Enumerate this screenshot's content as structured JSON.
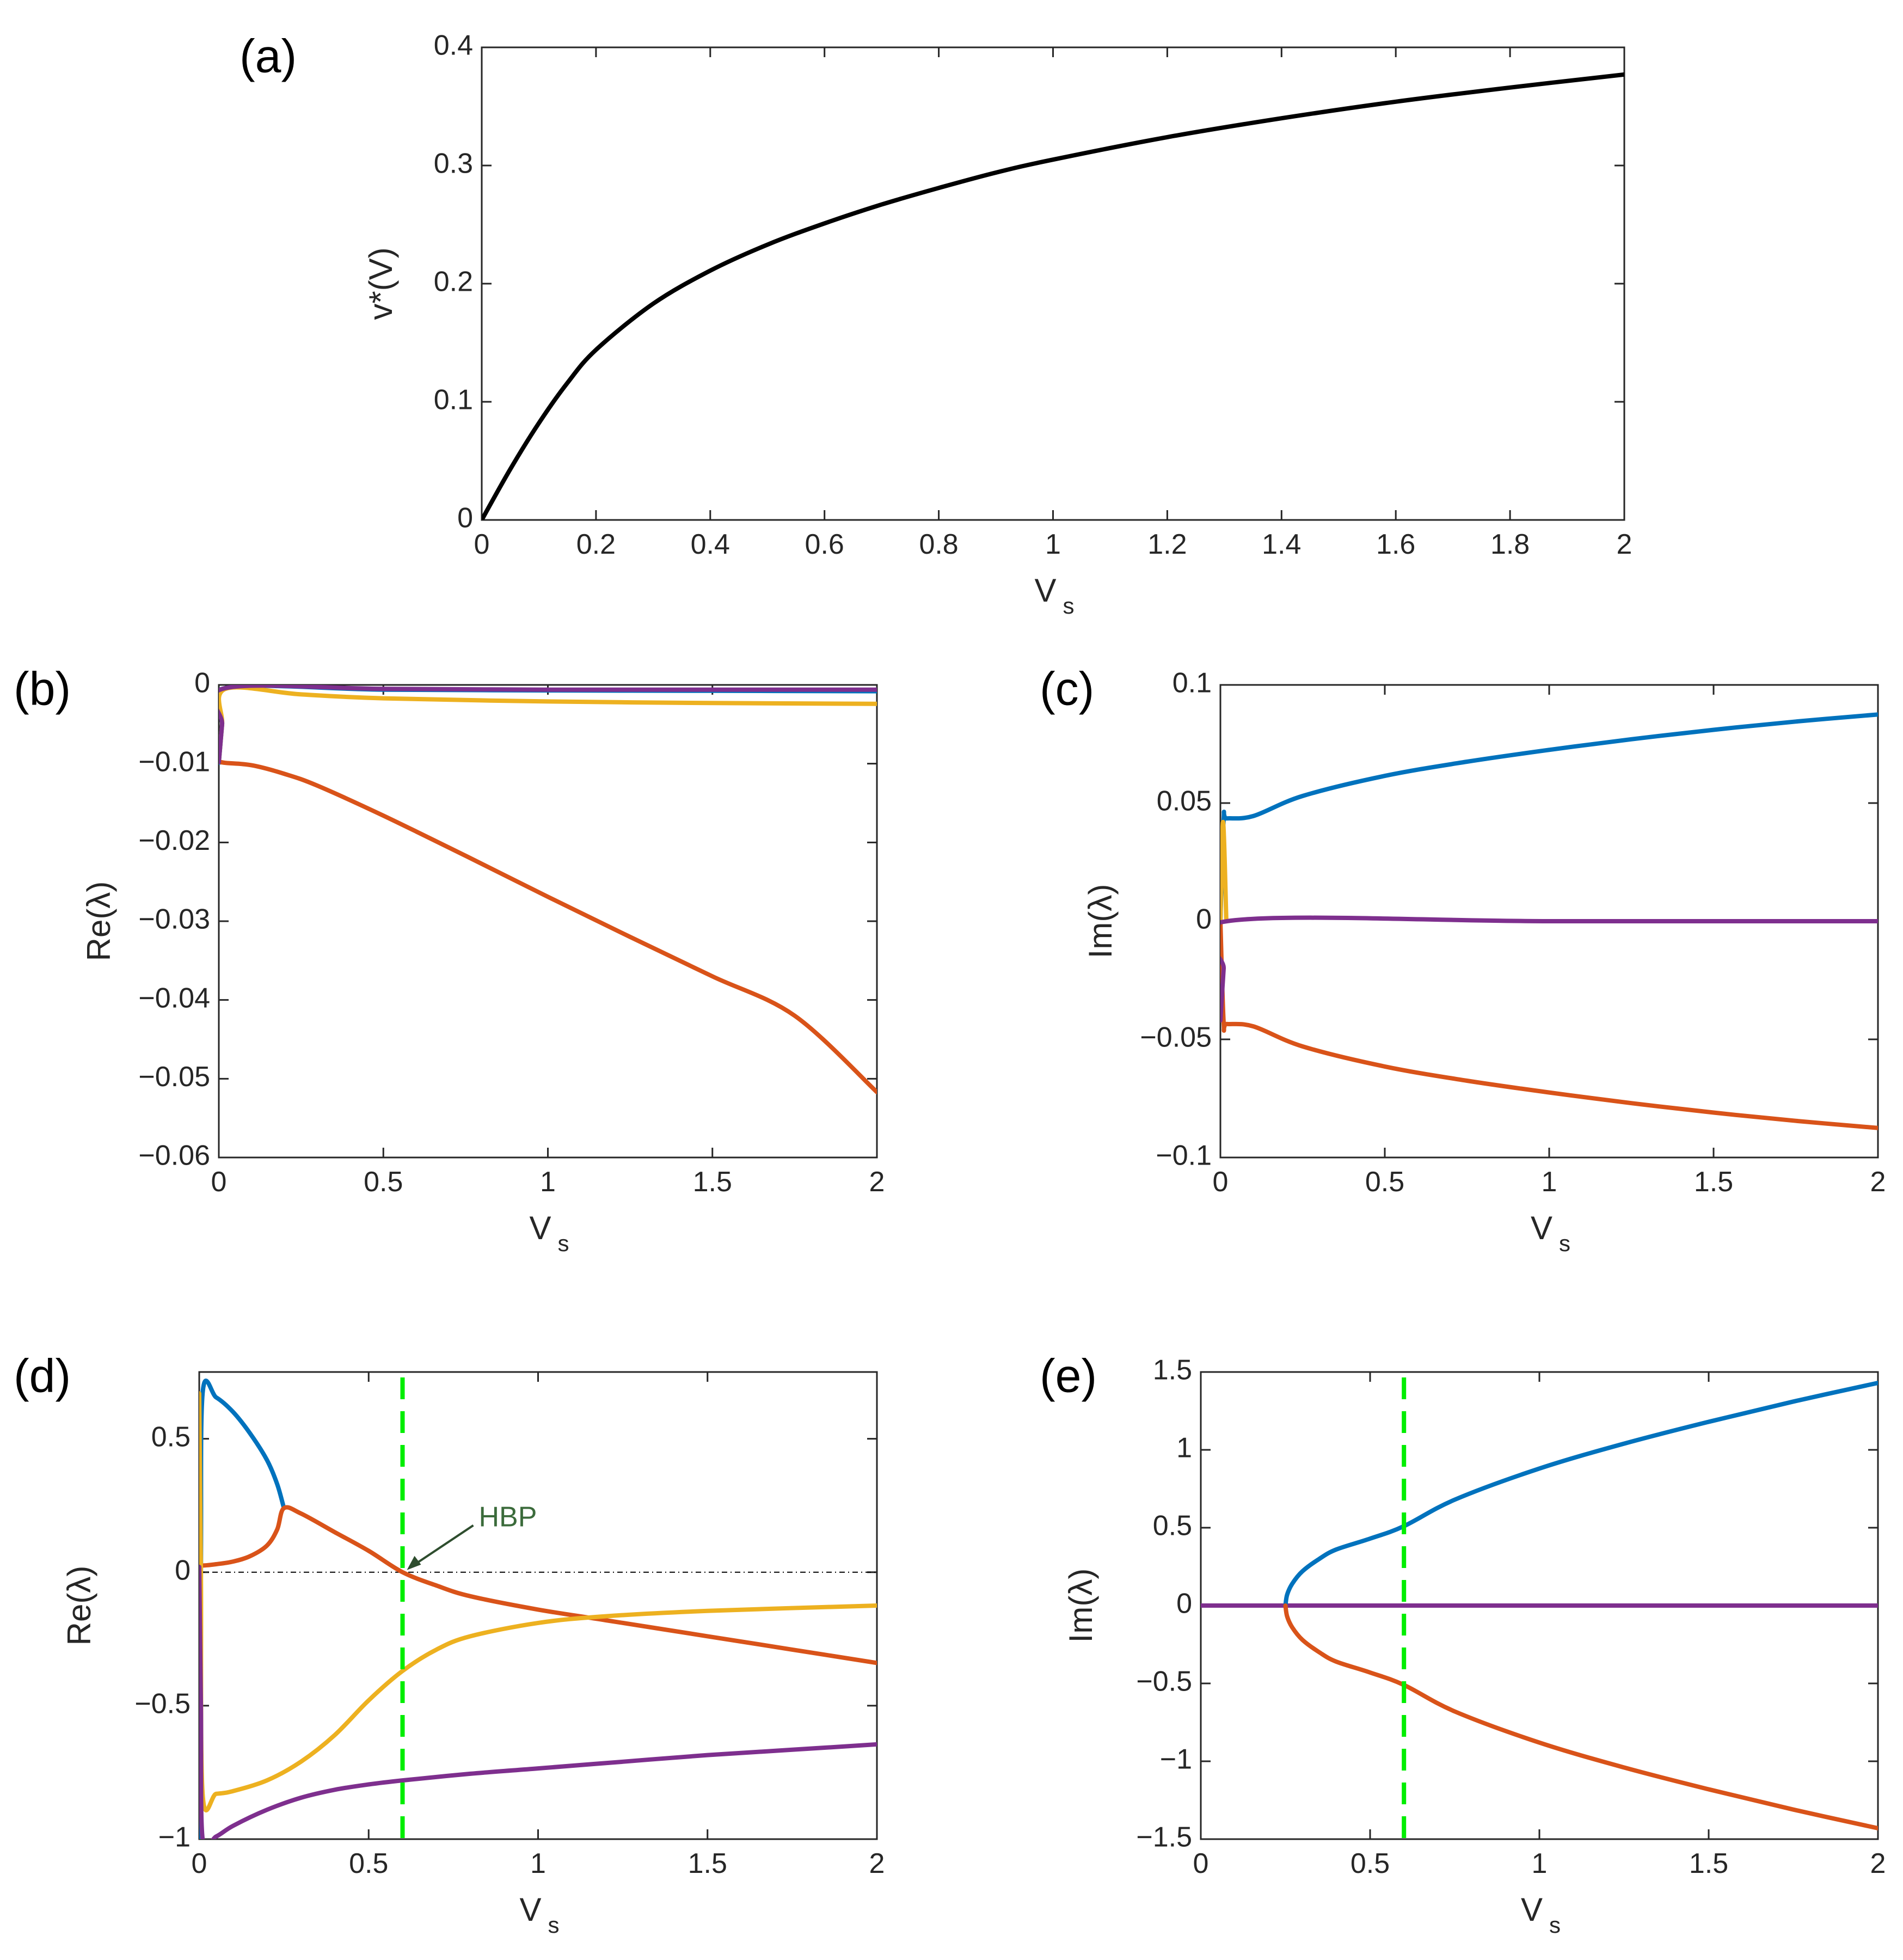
{
  "chart_data": [
    {
      "id": "a",
      "panel_label": "(a)",
      "type": "line",
      "xlabel": "V",
      "xlabel_sub": "s",
      "ylabel": "v*(V)",
      "xlim": [
        0,
        2
      ],
      "ylim": [
        0,
        0.4
      ],
      "xticks": [
        0,
        0.2,
        0.4,
        0.6,
        0.8,
        1,
        1.2,
        1.4,
        1.6,
        1.8,
        2
      ],
      "xtick_labels": [
        "0",
        "0.2",
        "0.4",
        "0.6",
        "0.8",
        "1",
        "1.2",
        "1.4",
        "1.6",
        "1.8",
        "2"
      ],
      "yticks": [
        0,
        0.1,
        0.2,
        0.3,
        0.4
      ],
      "ytick_labels": [
        "0",
        "0.1",
        "0.2",
        "0.3",
        "0.4"
      ],
      "series": [
        {
          "name": "v*",
          "color": "#000000",
          "x": [
            0,
            0.05,
            0.1,
            0.15,
            0.2,
            0.3,
            0.4,
            0.5,
            0.6,
            0.7,
            0.8,
            0.9,
            1.0,
            1.2,
            1.4,
            1.6,
            1.8,
            2.0
          ],
          "y": [
            0,
            0.043,
            0.082,
            0.116,
            0.144,
            0.183,
            0.211,
            0.233,
            0.251,
            0.267,
            0.281,
            0.294,
            0.305,
            0.324,
            0.34,
            0.354,
            0.366,
            0.377
          ]
        }
      ]
    },
    {
      "id": "b",
      "panel_label": "(b)",
      "type": "line",
      "xlabel": "V",
      "xlabel_sub": "s",
      "ylabel": "Re(λ)",
      "xlim": [
        0,
        2
      ],
      "ylim": [
        -0.06,
        0
      ],
      "xticks": [
        0,
        0.5,
        1,
        1.5,
        2
      ],
      "xtick_labels": [
        "0",
        "0.5",
        "1",
        "1.5",
        "2"
      ],
      "yticks": [
        0,
        -0.01,
        -0.02,
        -0.03,
        -0.04,
        -0.05,
        -0.06
      ],
      "ytick_labels": [
        "0",
        "−0.01",
        "−0.02",
        "−0.03",
        "−0.04",
        "−0.05",
        "−0.06"
      ],
      "series": [
        {
          "name": "blue",
          "color": "#0072BD",
          "x": [
            0,
            0.01,
            0.02,
            0.5,
            1,
            1.5,
            2
          ],
          "y": [
            -0.0099,
            -0.005,
            -0.0004,
            -0.0006,
            -0.0007,
            -0.00075,
            -0.0008
          ]
        },
        {
          "name": "orange",
          "color": "#D95319",
          "x": [
            0,
            0.02,
            0.1,
            0.2,
            0.3,
            0.5,
            0.75,
            1,
            1.25,
            1.5,
            1.75,
            2
          ],
          "y": [
            -0.0097,
            -0.0099,
            -0.0102,
            -0.0113,
            -0.0128,
            -0.0166,
            -0.0217,
            -0.0269,
            -0.032,
            -0.037,
            -0.042,
            -0.0517
          ]
        },
        {
          "name": "yellow",
          "color": "#EDB120",
          "x": [
            0,
            0.01,
            0.02,
            0.25,
            0.5,
            1,
            1.5,
            2
          ],
          "y": [
            -0.0098,
            -0.005,
            -0.0005,
            -0.0012,
            -0.0017,
            -0.0021,
            -0.0023,
            -0.0024
          ]
        },
        {
          "name": "purple",
          "color": "#7E2F8E",
          "x": [
            0,
            0.01,
            0.02,
            0.5,
            1,
            1.5,
            2
          ],
          "y": [
            -0.0098,
            -0.005,
            -0.0004,
            -0.0005,
            -0.0006,
            -0.0006,
            -0.0006
          ]
        }
      ]
    },
    {
      "id": "c",
      "panel_label": "(c)",
      "type": "line",
      "xlabel": "V",
      "xlabel_sub": "s",
      "ylabel": "Im(λ)",
      "xlim": [
        0,
        2
      ],
      "ylim": [
        -0.1,
        0.1
      ],
      "xticks": [
        0,
        0.5,
        1,
        1.5,
        2
      ],
      "xtick_labels": [
        "0",
        "0.5",
        "1",
        "1.5",
        "2"
      ],
      "yticks": [
        0.1,
        0.05,
        0,
        -0.05,
        -0.1
      ],
      "ytick_labels": [
        "0.1",
        "0.05",
        "0",
        "−0.05",
        "−0.1"
      ],
      "series": [
        {
          "name": "blue",
          "color": "#0072BD",
          "x": [
            0,
            0.01,
            0.02,
            0.1,
            0.25,
            0.5,
            0.75,
            1,
            1.25,
            1.5,
            1.75,
            2
          ],
          "y": [
            0.0,
            0.043,
            0.0435,
            0.0445,
            0.053,
            0.0615,
            0.0675,
            0.0725,
            0.077,
            0.081,
            0.0845,
            0.0875
          ]
        },
        {
          "name": "orange",
          "color": "#D95319",
          "x": [
            0,
            0.01,
            0.02,
            0.1,
            0.25,
            0.5,
            0.75,
            1,
            1.25,
            1.5,
            1.75,
            2
          ],
          "y": [
            0.0,
            -0.043,
            -0.0435,
            -0.0445,
            -0.053,
            -0.0615,
            -0.0675,
            -0.0725,
            -0.077,
            -0.081,
            -0.0845,
            -0.0875
          ]
        },
        {
          "name": "yellow",
          "color": "#EDB120",
          "x": [
            0,
            0.008,
            0.018
          ],
          "y": [
            0.0,
            0.042,
            0.0
          ]
        },
        {
          "name": "purple",
          "color": "#7E2F8E",
          "x": [
            0,
            0.01,
            0.02,
            1,
            2
          ],
          "y": [
            -0.042,
            -0.02,
            0.0,
            0.0,
            0.0
          ]
        }
      ]
    },
    {
      "id": "d",
      "panel_label": "(d)",
      "type": "line",
      "xlabel": "V",
      "xlabel_sub": "s",
      "ylabel": "Re(λ)",
      "xlim": [
        0,
        2
      ],
      "ylim": [
        -1,
        0.75
      ],
      "xticks": [
        0,
        0.5,
        1,
        1.5,
        2
      ],
      "xtick_labels": [
        "0",
        "0.5",
        "1",
        "1.5",
        "2"
      ],
      "yticks": [
        0.5,
        0,
        -0.5,
        -1
      ],
      "ytick_labels": [
        "0.5",
        "0",
        "−0.5",
        "−1"
      ],
      "annotation": {
        "text": "HBP",
        "x": 0.6,
        "y": 0.0,
        "arrow_color": "#2e4d2e"
      },
      "reference_line": {
        "y": 0,
        "style": "dash-dot",
        "color": "#000000"
      },
      "vline": {
        "x": 0.6,
        "style": "dashed",
        "color": "#00ee00"
      },
      "series": [
        {
          "name": "blue",
          "color": "#0072BD",
          "x": [
            0,
            0.005,
            0.01,
            0.05,
            0.1,
            0.15,
            0.2,
            0.23,
            0.25
          ],
          "y": [
            -1.0,
            0.0,
            0.67,
            0.655,
            0.6,
            0.52,
            0.42,
            0.33,
            0.24
          ]
        },
        {
          "name": "orange",
          "color": "#D95319",
          "x": [
            0,
            0.01,
            0.05,
            0.1,
            0.15,
            0.2,
            0.23,
            0.25,
            0.3,
            0.4,
            0.5,
            0.6,
            0.7,
            0.8,
            1.0,
            1.2,
            1.5,
            1.75,
            2.0
          ],
          "y": [
            0.03,
            0.025,
            0.03,
            0.04,
            0.06,
            0.1,
            0.16,
            0.24,
            0.22,
            0.15,
            0.08,
            0.0,
            -0.05,
            -0.09,
            -0.14,
            -0.18,
            -0.24,
            -0.29,
            -0.34
          ]
        },
        {
          "name": "yellow",
          "color": "#EDB120",
          "x": [
            0,
            0.005,
            0.01,
            0.05,
            0.1,
            0.2,
            0.3,
            0.4,
            0.5,
            0.6,
            0.7,
            0.8,
            1.0,
            1.2,
            1.5,
            2.0
          ],
          "y": [
            0.67,
            0.0,
            -0.83,
            -0.83,
            -0.82,
            -0.78,
            -0.71,
            -0.61,
            -0.48,
            -0.37,
            -0.29,
            -0.24,
            -0.19,
            -0.165,
            -0.145,
            -0.125
          ]
        },
        {
          "name": "purple",
          "color": "#7E2F8E",
          "x": [
            0,
            0.005,
            0.01,
            0.05,
            0.1,
            0.2,
            0.3,
            0.4,
            0.5,
            0.6,
            0.8,
            1.0,
            1.25,
            1.5,
            1.75,
            2.0
          ],
          "y": [
            0.02,
            -0.5,
            -1.0,
            -0.99,
            -0.95,
            -0.89,
            -0.845,
            -0.815,
            -0.795,
            -0.78,
            -0.755,
            -0.735,
            -0.71,
            -0.685,
            -0.665,
            -0.645
          ]
        }
      ]
    },
    {
      "id": "e",
      "panel_label": "(e)",
      "type": "line",
      "xlabel": "V",
      "xlabel_sub": "s",
      "ylabel": "Im(λ)",
      "xlim": [
        0,
        2
      ],
      "ylim": [
        -1.5,
        1.5
      ],
      "xticks": [
        0,
        0.5,
        1,
        1.5,
        2
      ],
      "xtick_labels": [
        "0",
        "0.5",
        "1",
        "1.5",
        "2"
      ],
      "yticks": [
        1.5,
        1,
        0.5,
        0,
        -0.5,
        -1,
        -1.5
      ],
      "ytick_labels": [
        "1.5",
        "1",
        "0.5",
        "0",
        "−0.5",
        "−1",
        "−1.5"
      ],
      "vline": {
        "x": 0.6,
        "style": "dashed",
        "color": "#00ee00"
      },
      "series": [
        {
          "name": "purple",
          "color": "#7E2F8E",
          "x": [
            0,
            2
          ],
          "y": [
            0,
            0
          ]
        },
        {
          "name": "blue",
          "color": "#0072BD",
          "x": [
            0.25,
            0.255,
            0.27,
            0.3,
            0.35,
            0.4,
            0.5,
            0.6,
            0.75,
            1.0,
            1.25,
            1.5,
            1.75,
            2.0
          ],
          "y": [
            0,
            0.07,
            0.14,
            0.22,
            0.3,
            0.36,
            0.43,
            0.51,
            0.68,
            0.88,
            1.04,
            1.18,
            1.31,
            1.43
          ]
        },
        {
          "name": "orange",
          "color": "#D95319",
          "x": [
            0.25,
            0.255,
            0.27,
            0.3,
            0.35,
            0.4,
            0.5,
            0.6,
            0.75,
            1.0,
            1.25,
            1.5,
            1.75,
            2.0
          ],
          "y": [
            0,
            -0.07,
            -0.14,
            -0.22,
            -0.3,
            -0.36,
            -0.43,
            -0.51,
            -0.68,
            -0.88,
            -1.04,
            -1.18,
            -1.31,
            -1.43
          ]
        }
      ]
    }
  ]
}
